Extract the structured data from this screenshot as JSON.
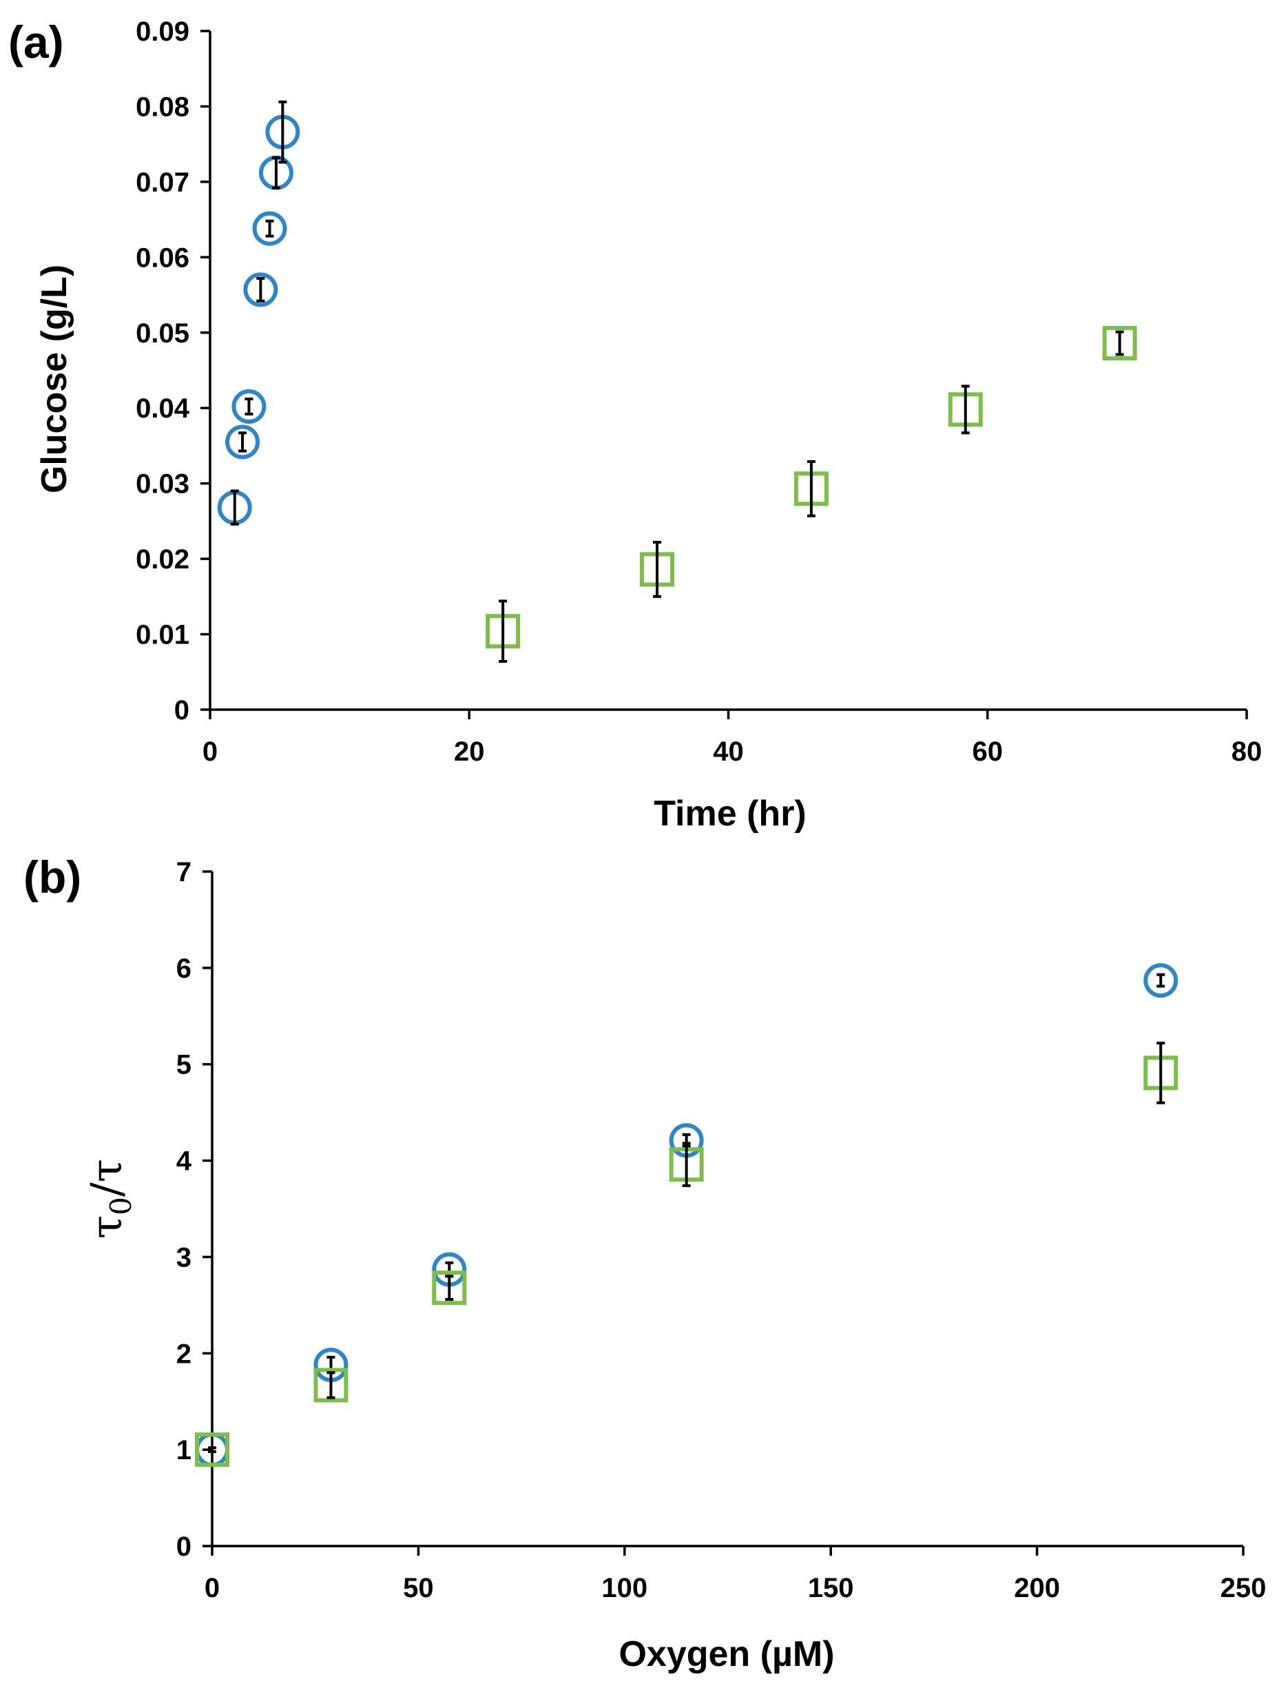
{
  "chart_data": [
    {
      "panel": "(a)",
      "type": "scatter",
      "xlabel": "Time (hr)",
      "ylabel": "Glucose (g/L)",
      "xlim": [
        0,
        80
      ],
      "ylim": [
        0,
        0.09
      ],
      "xticks": [
        0,
        20,
        40,
        60,
        80
      ],
      "xtick_labels": [
        "0",
        "20",
        "40",
        "60",
        "80"
      ],
      "yticks": [
        0,
        0.01,
        0.02,
        0.03,
        0.04,
        0.05,
        0.06,
        0.07,
        0.08,
        0.09
      ],
      "ytick_labels": [
        "0",
        "0.01",
        "0.02",
        "0.03",
        "0.04",
        "0.05",
        "0.06",
        "0.07",
        "0.08",
        "0.09"
      ],
      "series": [
        {
          "name": "circles",
          "marker": "circle",
          "color": "#2E86C8",
          "x": [
            1.9,
            2.5,
            3.0,
            3.9,
            4.6,
            5.1,
            5.6
          ],
          "y": [
            0.0268,
            0.0355,
            0.0402,
            0.0557,
            0.0638,
            0.0712,
            0.0766
          ],
          "err": [
            0.0022,
            0.0012,
            0.001,
            0.0015,
            0.001,
            0.002,
            0.004
          ]
        },
        {
          "name": "squares",
          "marker": "square",
          "color": "#7DBE4A",
          "x": [
            22.6,
            34.5,
            46.4,
            58.3,
            70.2
          ],
          "y": [
            0.0104,
            0.0186,
            0.0293,
            0.0398,
            0.0486
          ],
          "err": [
            0.004,
            0.0036,
            0.0036,
            0.0031,
            0.0015
          ]
        }
      ]
    },
    {
      "panel": "(b)",
      "type": "scatter",
      "xlabel": "Oxygen (µM)",
      "ylabel": "τ0/τ",
      "ylabel_main": "τ",
      "ylabel_sub": "0",
      "ylabel_rest": "/τ",
      "xlim": [
        0,
        250
      ],
      "ylim": [
        0,
        7
      ],
      "xticks": [
        0,
        50,
        100,
        150,
        200,
        250
      ],
      "xtick_labels": [
        "0",
        "50",
        "100",
        "150",
        "200",
        "250"
      ],
      "yticks": [
        0,
        1,
        2,
        3,
        4,
        5,
        6,
        7
      ],
      "ytick_labels": [
        "0",
        "1",
        "2",
        "3",
        "4",
        "5",
        "6",
        "7"
      ],
      "series": [
        {
          "name": "circles",
          "marker": "circle",
          "color": "#2E86C8",
          "x": [
            0,
            28.8,
            57.5,
            115,
            230
          ],
          "y": [
            1.0,
            1.88,
            2.87,
            4.21,
            5.87
          ],
          "err": [
            0.02,
            0.08,
            0.07,
            0.06,
            0.06
          ]
        },
        {
          "name": "squares",
          "marker": "square",
          "color": "#7DBE4A",
          "x": [
            0,
            28.8,
            57.5,
            115,
            230
          ],
          "y": [
            1.0,
            1.67,
            2.68,
            3.96,
            4.91
          ],
          "err": [
            0.02,
            0.13,
            0.12,
            0.22,
            0.31
          ]
        }
      ]
    }
  ]
}
